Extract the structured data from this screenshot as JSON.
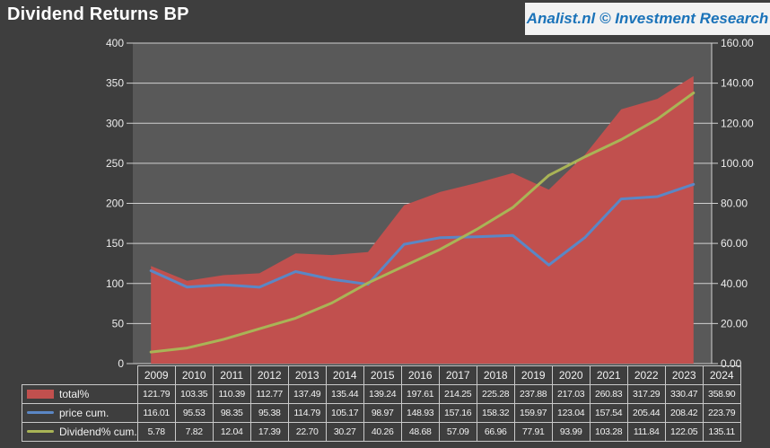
{
  "title": "Dividend Returns BP",
  "branding": "Analist.nl © Investment Research",
  "colors": {
    "page_bg": "#3E3E3E",
    "plot_bg": "#595959",
    "grid": "#D0D0D0",
    "axis_text": "#ECECEC",
    "table_border": "#C9C9C9",
    "table_text": "#F2F2F2",
    "brand_blue": "#1B73B9",
    "brand_bg": "#F2F2F2",
    "total": "#C1504E",
    "price": "#5B87C5",
    "dividend": "#A9B456"
  },
  "chart_data": {
    "type": "combo",
    "title": "Dividend Returns BP",
    "categories": [
      "2009",
      "2010",
      "2011",
      "2012",
      "2013",
      "2014",
      "2015",
      "2016",
      "2017",
      "2018",
      "2019",
      "2020",
      "2021",
      "2022",
      "2023",
      "2024"
    ],
    "series": [
      {
        "name": "total%",
        "type": "area",
        "axis": "left",
        "color_key": "total",
        "values": [
          121.79,
          103.35,
          110.39,
          112.77,
          137.49,
          135.44,
          139.24,
          197.61,
          214.25,
          225.28,
          237.88,
          217.03,
          260.83,
          317.29,
          330.47,
          358.9
        ]
      },
      {
        "name": "price cum.",
        "type": "line",
        "axis": "left",
        "color_key": "price",
        "values": [
          116.01,
          95.53,
          98.35,
          95.38,
          114.79,
          105.17,
          98.97,
          148.93,
          157.16,
          158.32,
          159.97,
          123.04,
          157.54,
          205.44,
          208.42,
          223.79
        ]
      },
      {
        "name": "Dividend% cum.",
        "type": "line",
        "axis": "right",
        "color_key": "dividend",
        "values": [
          5.78,
          7.82,
          12.04,
          17.39,
          22.7,
          30.27,
          40.26,
          48.68,
          57.09,
          66.96,
          77.91,
          93.99,
          103.28,
          111.84,
          122.05,
          135.11
        ]
      }
    ],
    "left_axis": {
      "min": 0,
      "max": 400,
      "tick_labels": [
        "0",
        "50",
        "100",
        "150",
        "200",
        "250",
        "300",
        "350",
        "400"
      ]
    },
    "right_axis": {
      "min": 0,
      "max": 160,
      "tick_labels": [
        "0.00",
        "20.00",
        "40.00",
        "60.00",
        "80.00",
        "100.00",
        "120.00",
        "140.00",
        "160.00"
      ]
    },
    "grid": true,
    "legend_position": "table-left",
    "value_format_decimals": 2
  }
}
